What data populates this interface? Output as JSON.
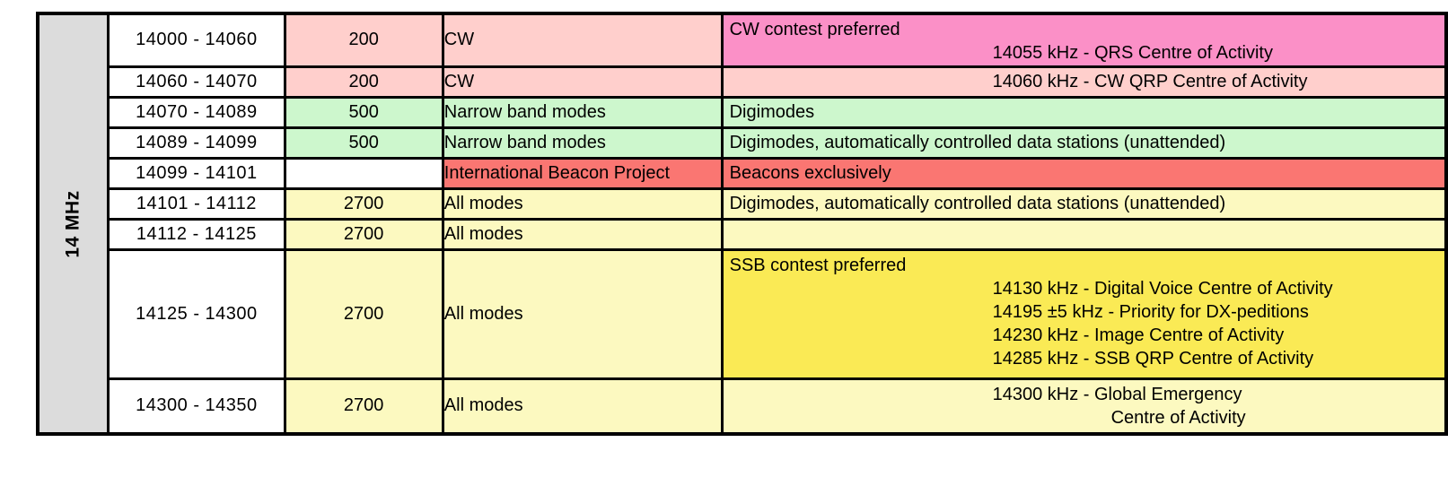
{
  "band_label": "14 MHz",
  "palette": {
    "band_bg": "#DCDCDC",
    "white": "#FFFFFF",
    "pink_light": "#FFCFCC",
    "pink_bright": "#FB90C7",
    "green_light": "#CDF7CD",
    "red": "#FA7672",
    "yellow_pale": "#FCF9C0",
    "yellow_bright": "#FAEA55",
    "border": "#000000"
  },
  "chart_data": {
    "type": "table",
    "band": "14 MHz",
    "rows": [
      {
        "frequency": "14000 - 14060",
        "bandwidth": "200",
        "mode": "CW",
        "colors": {
          "bandwidth": "pink_light",
          "mode": "pink_light",
          "usage": "pink_bright"
        },
        "usage": {
          "note": "CW contest preferred",
          "centre_lines": [
            "14055 kHz - QRS Centre of Activity"
          ]
        }
      },
      {
        "frequency": "14060 - 14070",
        "bandwidth": "200",
        "mode": "CW",
        "colors": {
          "bandwidth": "pink_light",
          "mode": "pink_light",
          "usage": "pink_light"
        },
        "usage": {
          "centre_lines": [
            "14060 kHz - CW QRP Centre of Activity"
          ]
        }
      },
      {
        "frequency": "14070 - 14089",
        "bandwidth": "500",
        "mode": "Narrow band modes",
        "colors": {
          "bandwidth": "green_light",
          "mode": "green_light",
          "usage": "green_light"
        },
        "usage": {
          "note": "Digimodes"
        }
      },
      {
        "frequency": "14089 - 14099",
        "bandwidth": "500",
        "mode": "Narrow band modes",
        "colors": {
          "bandwidth": "green_light",
          "mode": "green_light",
          "usage": "green_light"
        },
        "usage": {
          "note": "Digimodes, automatically controlled data stations (unattended)"
        }
      },
      {
        "frequency": "14099 - 14101",
        "bandwidth": "",
        "mode": "International Beacon Project",
        "colors": {
          "bandwidth": "white",
          "mode": "red",
          "usage": "red"
        },
        "usage": {
          "note": "Beacons exclusively"
        }
      },
      {
        "frequency": "14101 - 14112",
        "bandwidth": "2700",
        "mode": "All modes",
        "colors": {
          "bandwidth": "yellow_pale",
          "mode": "yellow_pale",
          "usage": "yellow_pale"
        },
        "usage": {
          "note": "Digimodes, automatically controlled data stations (unattended)"
        }
      },
      {
        "frequency": "14112 - 14125",
        "bandwidth": "2700",
        "mode": "All modes",
        "colors": {
          "bandwidth": "yellow_pale",
          "mode": "yellow_pale",
          "usage": "yellow_pale"
        },
        "usage": {}
      },
      {
        "frequency": "14125 - 14300",
        "bandwidth": "2700",
        "mode": "All modes",
        "colors": {
          "bandwidth": "yellow_pale",
          "mode": "yellow_pale",
          "usage": "yellow_bright"
        },
        "usage": {
          "note": "SSB contest preferred",
          "centre_lines": [
            "14130 kHz - Digital Voice Centre of Activity",
            "14195 ±5 kHz - Priority for DX-peditions",
            "14230 kHz - Image Centre of Activity",
            "14285 kHz - SSB QRP Centre of Activity"
          ]
        }
      },
      {
        "frequency": "14300 - 14350",
        "bandwidth": "2700",
        "mode": "All modes",
        "colors": {
          "bandwidth": "yellow_pale",
          "mode": "yellow_pale",
          "usage": "yellow_pale"
        },
        "usage": {
          "centre_lines": [
            "14300 kHz - Global Emergency",
            "Centre of Activity"
          ],
          "wrap_indent": true
        }
      }
    ]
  }
}
